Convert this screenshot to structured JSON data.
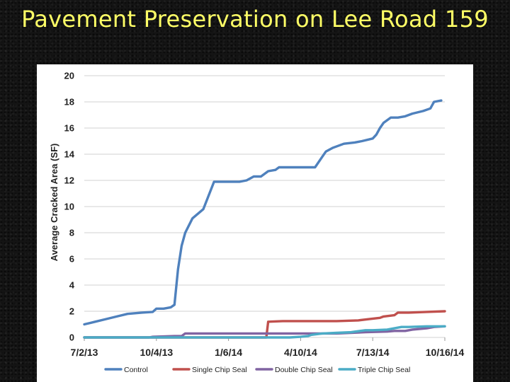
{
  "slide": {
    "title": "Pavement Preservation on Lee Road 159"
  },
  "chart_data": {
    "type": "line",
    "title": "",
    "xlabel": "",
    "ylabel": "Average Cracked Area (SF)",
    "ylim": [
      0,
      20
    ],
    "yticks": [
      "0",
      "2",
      "4",
      "6",
      "8",
      "10",
      "12",
      "14",
      "16",
      "18",
      "20"
    ],
    "xlim": [
      0,
      100
    ],
    "xticks": [
      {
        "label": "7/2/13",
        "x": 0
      },
      {
        "label": "10/4/13",
        "x": 20
      },
      {
        "label": "1/6/14",
        "x": 40
      },
      {
        "label": "4/10/14",
        "x": 60
      },
      {
        "label": "7/13/14",
        "x": 80
      },
      {
        "label": "10/16/14",
        "x": 100
      }
    ],
    "grid": true,
    "legend_position": "bottom",
    "series": [
      {
        "name": "Control",
        "color": "#4f81bd",
        "points": [
          [
            0,
            1.0
          ],
          [
            3,
            1.2
          ],
          [
            6,
            1.4
          ],
          [
            9,
            1.6
          ],
          [
            12,
            1.8
          ],
          [
            14,
            1.85
          ],
          [
            16,
            1.9
          ],
          [
            19,
            1.95
          ],
          [
            20,
            2.2
          ],
          [
            22,
            2.2
          ],
          [
            24,
            2.3
          ],
          [
            25,
            2.5
          ],
          [
            26,
            5.2
          ],
          [
            27,
            7.0
          ],
          [
            28,
            8.0
          ],
          [
            30,
            9.1
          ],
          [
            33,
            9.8
          ],
          [
            36,
            11.9
          ],
          [
            40,
            11.9
          ],
          [
            43,
            11.9
          ],
          [
            45,
            12.0
          ],
          [
            47,
            12.3
          ],
          [
            49,
            12.3
          ],
          [
            51,
            12.7
          ],
          [
            53,
            12.8
          ],
          [
            54,
            13.0
          ],
          [
            58,
            13.0
          ],
          [
            62,
            13.0
          ],
          [
            64,
            13.0
          ],
          [
            66,
            13.8
          ],
          [
            67,
            14.2
          ],
          [
            69,
            14.5
          ],
          [
            72,
            14.8
          ],
          [
            75,
            14.9
          ],
          [
            77,
            15.0
          ],
          [
            80,
            15.2
          ],
          [
            81,
            15.5
          ],
          [
            82,
            16.0
          ],
          [
            83,
            16.4
          ],
          [
            85,
            16.8
          ],
          [
            87,
            16.8
          ],
          [
            89,
            16.9
          ],
          [
            91,
            17.1
          ],
          [
            94,
            17.3
          ],
          [
            96,
            17.5
          ],
          [
            97,
            18.0
          ],
          [
            99,
            18.1
          ]
        ]
      },
      {
        "name": "Single Chip Seal",
        "color": "#c0504d",
        "points": [
          [
            0,
            0
          ],
          [
            20,
            0
          ],
          [
            30,
            0
          ],
          [
            40,
            0
          ],
          [
            50,
            0
          ],
          [
            50.5,
            0
          ],
          [
            51,
            1.2
          ],
          [
            55,
            1.25
          ],
          [
            62,
            1.25
          ],
          [
            70,
            1.25
          ],
          [
            76,
            1.3
          ],
          [
            79,
            1.4
          ],
          [
            82,
            1.5
          ],
          [
            83,
            1.6
          ],
          [
            86,
            1.7
          ],
          [
            87,
            1.9
          ],
          [
            90,
            1.9
          ],
          [
            95,
            1.95
          ],
          [
            100,
            2.0
          ]
        ]
      },
      {
        "name": "Double Chip Seal",
        "color": "#8064a2",
        "points": [
          [
            0,
            0
          ],
          [
            18,
            0
          ],
          [
            19,
            0.05
          ],
          [
            25,
            0.1
          ],
          [
            27,
            0.1
          ],
          [
            28,
            0.3
          ],
          [
            35,
            0.3
          ],
          [
            45,
            0.3
          ],
          [
            55,
            0.3
          ],
          [
            65,
            0.3
          ],
          [
            70,
            0.3
          ],
          [
            78,
            0.4
          ],
          [
            84,
            0.45
          ],
          [
            86,
            0.5
          ],
          [
            89,
            0.5
          ],
          [
            91,
            0.6
          ],
          [
            95,
            0.7
          ],
          [
            97,
            0.8
          ],
          [
            100,
            0.85
          ]
        ]
      },
      {
        "name": "Triple Chip Seal",
        "color": "#4bacc6",
        "points": [
          [
            0,
            0
          ],
          [
            20,
            0
          ],
          [
            40,
            0
          ],
          [
            45,
            0
          ],
          [
            50,
            0
          ],
          [
            57,
            0
          ],
          [
            60,
            0.05
          ],
          [
            62,
            0.1
          ],
          [
            63,
            0.2
          ],
          [
            66,
            0.3
          ],
          [
            70,
            0.35
          ],
          [
            74,
            0.4
          ],
          [
            78,
            0.55
          ],
          [
            80,
            0.55
          ],
          [
            84,
            0.6
          ],
          [
            86,
            0.7
          ],
          [
            88,
            0.8
          ],
          [
            90,
            0.8
          ],
          [
            95,
            0.85
          ],
          [
            100,
            0.85
          ]
        ]
      }
    ]
  }
}
